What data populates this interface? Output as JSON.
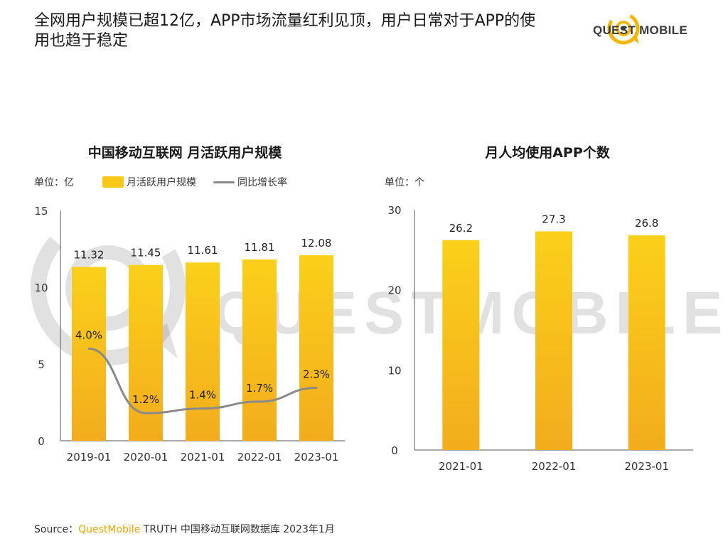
{
  "header": {
    "headline": "全网用户规模已超12亿，APP市场流量红利见顶，用户日常对于APP的使用也趋于稳定",
    "logo_text": "QUEST MOBILE"
  },
  "watermark": {
    "text": "QUESTMOBILE"
  },
  "colors": {
    "bar": "#f8c81a",
    "bar_dark": "#f2ae1a",
    "line": "#8a8a8a",
    "brand": "#f0a800"
  },
  "left_chart": {
    "title": "中国移动互联网 月活跃用户规模",
    "unit": "单位：亿",
    "legend": {
      "bar": "月活跃用户规模",
      "line": "同比增长率"
    }
  },
  "right_chart": {
    "title": "月人均使用APP个数",
    "unit": "单位：个"
  },
  "chart_data": [
    {
      "type": "bar",
      "title": "中国移动互联网 月活跃用户规模",
      "categories": [
        "2019-01",
        "2020-01",
        "2021-01",
        "2022-01",
        "2023-01"
      ],
      "ylim": [
        0,
        15
      ],
      "yticks": [
        0,
        5,
        10,
        15
      ],
      "series": [
        {
          "name": "月活跃用户规模",
          "type": "bar",
          "values": [
            11.32,
            11.45,
            11.61,
            11.81,
            12.08
          ],
          "labels": [
            "11.32",
            "11.45",
            "11.61",
            "11.81",
            "12.08"
          ]
        },
        {
          "name": "同比增长率",
          "type": "line",
          "values": [
            4.0,
            1.2,
            1.4,
            1.7,
            2.3
          ],
          "labels": [
            "4.0%",
            "1.2%",
            "1.4%",
            "1.7%",
            "2.3%"
          ]
        }
      ],
      "grid": false
    },
    {
      "type": "bar",
      "title": "月人均使用APP个数",
      "categories": [
        "2021-01",
        "2022-01",
        "2023-01"
      ],
      "ylim": [
        0,
        30
      ],
      "yticks": [
        0,
        10,
        20,
        30
      ],
      "values": [
        26.2,
        27.3,
        26.8
      ],
      "labels": [
        "26.2",
        "27.3",
        "26.8"
      ],
      "grid": false
    }
  ],
  "footer": {
    "prefix": "Source：",
    "brand": "QuestMobile",
    "rest": " TRUTH 中国移动互联网数据库 2023年1月"
  }
}
